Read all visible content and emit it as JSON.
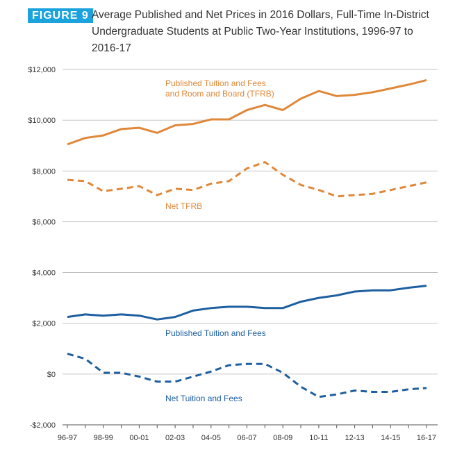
{
  "figure_label": "FIGURE 9",
  "title_line1": "Average Published and Net Prices in 2016 Dollars, Full-Time In-District",
  "title_line2": "Undergraduate Students at Public Two-Year Institutions, 1996-97 to",
  "title_line3": "2016-17",
  "chart_data": {
    "type": "line",
    "x": [
      "96-97",
      "97-98",
      "98-99",
      "99-00",
      "00-01",
      "01-02",
      "02-03",
      "03-04",
      "04-05",
      "05-06",
      "06-07",
      "07-08",
      "08-09",
      "09-10",
      "10-11",
      "11-12",
      "12-13",
      "13-14",
      "14-15",
      "15-16",
      "16-17"
    ],
    "x_tick_labels": [
      "96-97",
      "98-99",
      "00-01",
      "02-03",
      "04-05",
      "06-07",
      "08-09",
      "10-11",
      "12-13",
      "14-15",
      "16-17"
    ],
    "ylim": [
      -2000,
      12000
    ],
    "y_ticks": [
      -2000,
      0,
      2000,
      4000,
      6000,
      8000,
      10000,
      12000
    ],
    "y_tick_labels": [
      "-$2,000",
      "$0",
      "$2,000",
      "$4,000",
      "$6,000",
      "$8,000",
      "$10,000",
      "$12,000"
    ],
    "grid": true,
    "series": [
      {
        "name": "Published Tuition and Fees and Room and Board (TFRB)",
        "label_lines": [
          "Published Tuition and Fees",
          "and Room and Board (TFRB)"
        ],
        "color": "#e0883a",
        "style": "solid",
        "values": [
          9050,
          9300,
          9400,
          9650,
          9700,
          9500,
          9800,
          9850,
          10030,
          10030,
          10400,
          10600,
          10400,
          10850,
          11150,
          10950,
          11000,
          11100,
          11250,
          11400,
          11580
        ]
      },
      {
        "name": "Net TFRB",
        "label_lines": [
          "Net TFRB"
        ],
        "color": "#e0883a",
        "style": "dashed",
        "values": [
          7650,
          7600,
          7200,
          7300,
          7400,
          7050,
          7300,
          7250,
          7500,
          7600,
          8100,
          8350,
          7850,
          7450,
          7250,
          7000,
          7050,
          7100,
          7250,
          7400,
          7550
        ]
      },
      {
        "name": "Published Tuition and Fees",
        "label_lines": [
          "Published Tuition and Fees"
        ],
        "color": "#1e5fa0",
        "style": "solid",
        "values": [
          2250,
          2350,
          2300,
          2350,
          2300,
          2150,
          2250,
          2500,
          2600,
          2650,
          2650,
          2600,
          2600,
          2850,
          3000,
          3100,
          3250,
          3300,
          3300,
          3400,
          3480
        ]
      },
      {
        "name": "Net Tuition and Fees",
        "label_lines": [
          "Net Tuition and Fees"
        ],
        "color": "#1e5fa0",
        "style": "dashed",
        "values": [
          800,
          600,
          50,
          50,
          -100,
          -300,
          -300,
          -100,
          100,
          350,
          400,
          400,
          50,
          -500,
          -900,
          -800,
          -650,
          -700,
          -700,
          -600,
          -550
        ]
      }
    ]
  }
}
